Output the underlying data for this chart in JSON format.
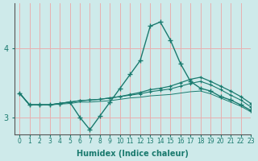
{
  "xlabel": "Humidex (Indice chaleur)",
  "bg_color": "#ceeaea",
  "line_color": "#1a7a6e",
  "grid_color": "#e8b0b0",
  "xlim": [
    -0.5,
    23
  ],
  "ylim": [
    2.75,
    4.65
  ],
  "yticks": [
    3,
    4
  ],
  "xticks": [
    0,
    1,
    2,
    3,
    4,
    5,
    6,
    7,
    8,
    9,
    10,
    11,
    12,
    13,
    14,
    15,
    16,
    17,
    18,
    19,
    20,
    21,
    22,
    23
  ],
  "curve1_x": [
    0,
    1,
    2,
    3,
    4,
    5,
    6,
    7,
    8,
    9,
    10,
    11,
    12,
    13,
    14,
    15,
    16,
    17,
    18,
    19,
    20,
    21,
    22,
    23
  ],
  "curve1_y": [
    3.35,
    3.18,
    3.18,
    3.18,
    3.2,
    3.22,
    3.0,
    2.82,
    3.02,
    3.22,
    3.42,
    3.62,
    3.82,
    4.32,
    4.38,
    4.12,
    3.78,
    3.52,
    3.42,
    3.38,
    3.3,
    3.25,
    3.18,
    3.1
  ],
  "curve2_x": [
    0,
    1,
    2,
    3,
    4,
    5,
    6,
    7,
    8,
    9,
    10,
    11,
    12,
    13,
    14,
    15,
    16,
    17,
    18,
    19,
    20,
    21,
    22,
    23
  ],
  "curve2_y": [
    3.35,
    3.18,
    3.18,
    3.18,
    3.2,
    3.22,
    3.24,
    3.25,
    3.26,
    3.28,
    3.3,
    3.33,
    3.36,
    3.4,
    3.42,
    3.45,
    3.5,
    3.55,
    3.58,
    3.52,
    3.45,
    3.38,
    3.3,
    3.2
  ],
  "curve3_x": [
    0,
    1,
    2,
    3,
    4,
    5,
    6,
    7,
    8,
    9,
    10,
    11,
    12,
    13,
    14,
    15,
    16,
    17,
    18,
    19,
    20,
    21,
    22,
    23
  ],
  "curve3_y": [
    3.35,
    3.18,
    3.18,
    3.18,
    3.2,
    3.22,
    3.24,
    3.25,
    3.26,
    3.28,
    3.3,
    3.32,
    3.34,
    3.37,
    3.39,
    3.41,
    3.45,
    3.49,
    3.52,
    3.47,
    3.4,
    3.32,
    3.25,
    3.15
  ],
  "curve4_x": [
    0,
    1,
    2,
    3,
    4,
    5,
    6,
    7,
    8,
    9,
    10,
    11,
    12,
    13,
    14,
    15,
    16,
    17,
    18,
    19,
    20,
    21,
    22,
    23
  ],
  "curve4_y": [
    3.35,
    3.18,
    3.18,
    3.18,
    3.19,
    3.2,
    3.22,
    3.22,
    3.23,
    3.24,
    3.26,
    3.28,
    3.29,
    3.31,
    3.32,
    3.33,
    3.35,
    3.37,
    3.38,
    3.34,
    3.28,
    3.22,
    3.16,
    3.08
  ]
}
